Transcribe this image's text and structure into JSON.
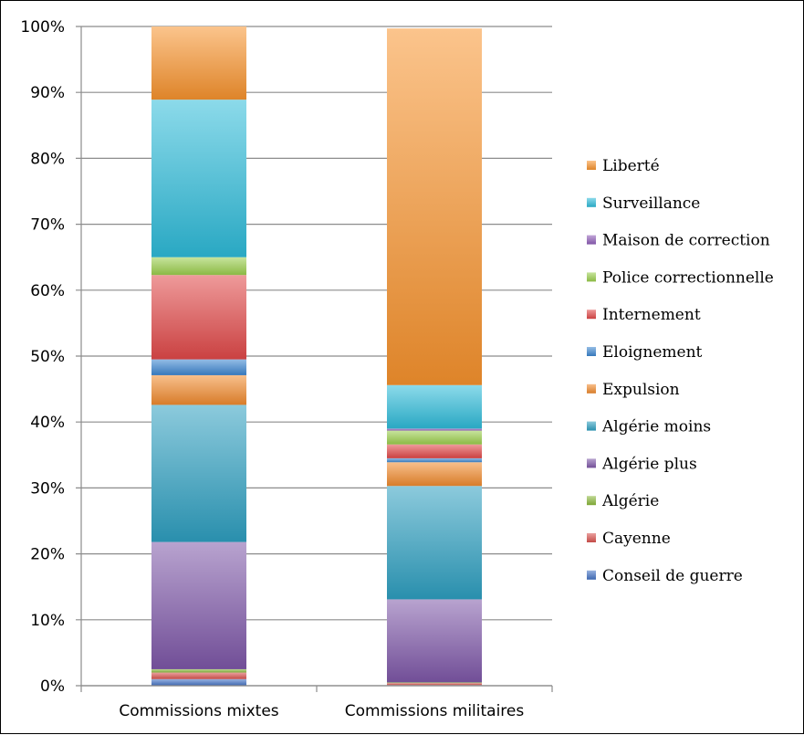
{
  "chart_data": {
    "type": "bar",
    "stacked": true,
    "percent": true,
    "categories": [
      "Commissions mixtes",
      "Commissions militaires"
    ],
    "series": [
      {
        "name": "Conseil de guerre",
        "color": "#4472C4",
        "values": [
          1.0,
          0.1
        ]
      },
      {
        "name": "Cayenne",
        "color": "#D9534F",
        "values": [
          1.0,
          0.3
        ]
      },
      {
        "name": "Algérie",
        "color": "#8BB83C",
        "values": [
          0.5,
          0.1
        ]
      },
      {
        "name": "Algérie plus",
        "color": "#7E57A8",
        "values": [
          19.3,
          12.6
        ]
      },
      {
        "name": "Algérie moins",
        "color": "#2E9FC0",
        "values": [
          20.8,
          17.2
        ]
      },
      {
        "name": "Expulsion",
        "color": "#F08A2E",
        "values": [
          4.5,
          3.6
        ]
      },
      {
        "name": "Eloignement",
        "color": "#3C85D0",
        "values": [
          2.4,
          0.6
        ]
      },
      {
        "name": "Internement",
        "color": "#E04848",
        "values": [
          12.8,
          2.1
        ]
      },
      {
        "name": "Police correctionnelle",
        "color": "#9ACD4C",
        "values": [
          2.7,
          2.1
        ]
      },
      {
        "name": "Maison de correction",
        "color": "#8E5DB8",
        "values": [
          0,
          0.3
        ]
      },
      {
        "name": "Surveillance",
        "color": "#2DBBD9",
        "values": [
          23.9,
          6.6
        ]
      },
      {
        "name": "Liberté",
        "color": "#F7932E",
        "values": [
          11.1,
          54.1
        ]
      }
    ],
    "yticks": [
      "0%",
      "10%",
      "20%",
      "30%",
      "40%",
      "50%",
      "60%",
      "70%",
      "80%",
      "90%",
      "100%"
    ],
    "ylim": [
      0,
      100
    ],
    "grid": true,
    "legend_position": "right"
  }
}
